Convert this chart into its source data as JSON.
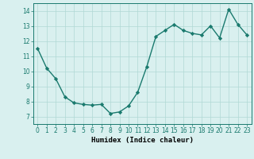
{
  "x": [
    0,
    1,
    2,
    3,
    4,
    5,
    6,
    7,
    8,
    9,
    10,
    11,
    12,
    13,
    14,
    15,
    16,
    17,
    18,
    19,
    20,
    21,
    22,
    23
  ],
  "y": [
    11.5,
    10.2,
    9.5,
    8.3,
    7.9,
    7.8,
    7.75,
    7.8,
    7.2,
    7.3,
    7.7,
    8.6,
    10.3,
    12.3,
    12.7,
    13.1,
    12.7,
    12.5,
    12.4,
    13.0,
    12.2,
    14.1,
    13.1,
    12.4
  ],
  "xlabel": "Humidex (Indice chaleur)",
  "ylim": [
    6.5,
    14.5
  ],
  "xlim": [
    -0.5,
    23.5
  ],
  "yticks": [
    7,
    8,
    9,
    10,
    11,
    12,
    13,
    14
  ],
  "xticks": [
    0,
    1,
    2,
    3,
    4,
    5,
    6,
    7,
    8,
    9,
    10,
    11,
    12,
    13,
    14,
    15,
    16,
    17,
    18,
    19,
    20,
    21,
    22,
    23
  ],
  "line_color": "#1a7a6e",
  "marker": "D",
  "marker_size": 2.2,
  "bg_color": "#d9f0ef",
  "grid_color": "#b0d8d4",
  "line_width": 1.0,
  "tick_fontsize": 5.5,
  "xlabel_fontsize": 6.5
}
